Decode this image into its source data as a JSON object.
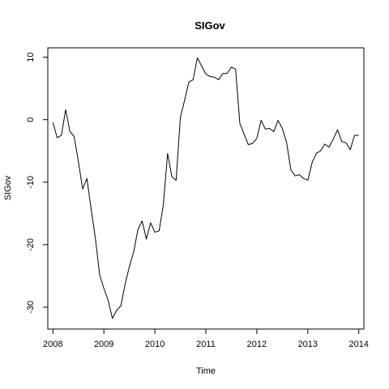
{
  "chart_data": {
    "type": "line",
    "title": "SIGov",
    "xlabel": "Time",
    "ylabel": "SIGov",
    "xlim": [
      2007.9,
      2014.1
    ],
    "ylim": [
      -33.5,
      11.5
    ],
    "x_ticks": [
      2008,
      2009,
      2010,
      2011,
      2012,
      2013,
      2014
    ],
    "y_ticks": [
      -30,
      -20,
      -10,
      0,
      10
    ],
    "grid": false,
    "series": [
      {
        "start": 2008.0,
        "step": 0.0833333333,
        "values": [
          -0.4,
          -2.9,
          -2.5,
          1.6,
          -1.9,
          -2.7,
          -6.7,
          -11.1,
          -9.4,
          -14.3,
          -19.0,
          -24.8,
          -27.0,
          -28.9,
          -31.8,
          -30.5,
          -29.8,
          -26.3,
          -23.5,
          -21.2,
          -17.6,
          -16.2,
          -19.1,
          -16.5,
          -18.0,
          -17.8,
          -13.6,
          -5.4,
          -9.1,
          -9.7,
          0.4,
          3.1,
          6.0,
          6.4,
          9.9,
          8.6,
          7.3,
          6.9,
          6.8,
          6.4,
          7.4,
          7.4,
          8.4,
          8.1,
          -0.6,
          -2.3,
          -4.0,
          -3.8,
          -3.0,
          -0.1,
          -1.5,
          -1.4,
          -1.9,
          -0.1,
          -1.4,
          -3.6,
          -8.0,
          -9.0,
          -8.8,
          -9.4,
          -9.7,
          -6.9,
          -5.4,
          -5.0,
          -3.9,
          -4.4,
          -3.1,
          -1.6,
          -3.5,
          -3.7,
          -4.8,
          -2.5,
          -2.5
        ]
      }
    ]
  }
}
